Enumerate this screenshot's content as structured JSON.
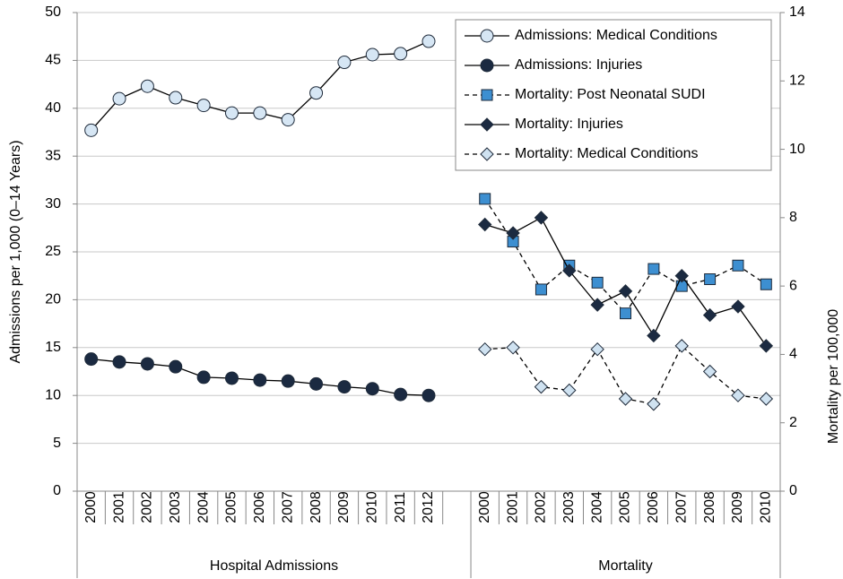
{
  "chart_data": {
    "type": "line",
    "y_label": "Admissions per 1,000 (0–14 Years)",
    "y2_label": "Mortality per 100,000",
    "categories": [
      "2000",
      "2001",
      "2002",
      "2003",
      "2004",
      "2005",
      "2006",
      "2007",
      "2008",
      "2009",
      "2010",
      "2011",
      "2012",
      null,
      "2000",
      "2001",
      "2002",
      "2003",
      "2004",
      "2005",
      "2006",
      "2007",
      "2008",
      "2009",
      "2010"
    ],
    "groups": [
      "Hospital Admissions",
      "Mortality"
    ],
    "ylim": [
      0,
      50
    ],
    "yticks": [
      0,
      5,
      10,
      15,
      20,
      25,
      30,
      35,
      40,
      45,
      50
    ],
    "y2lim": [
      0,
      14
    ],
    "y2ticks": [
      0,
      2,
      4,
      6,
      8,
      10,
      12,
      14
    ],
    "grid": true,
    "legend": "top-right",
    "series": [
      {
        "name": "Admissions: Medical Conditions",
        "color": "#d6e6f4",
        "marker": "circle",
        "dashed": false,
        "values": [
          37.7,
          41,
          42.3,
          41.1,
          40.3,
          39.5,
          39.5,
          38.8,
          41.6,
          44.8,
          45.6,
          45.7,
          47,
          null,
          null,
          null,
          null,
          null,
          null,
          null,
          null,
          null,
          null,
          null,
          null
        ]
      },
      {
        "name": "Admissions: Injuries",
        "color": "#1b2a41",
        "marker": "circle",
        "dashed": false,
        "values": [
          13.8,
          13.5,
          13.3,
          13.0,
          11.9,
          11.8,
          11.6,
          11.5,
          11.2,
          10.9,
          10.7,
          10.1,
          10.0,
          null,
          null,
          null,
          null,
          null,
          null,
          null,
          null,
          null,
          null,
          null,
          null
        ]
      },
      {
        "name": "Mortality: Post Neonatal SUDI",
        "color": "#3d8fd1",
        "marker": "square",
        "dashed": true,
        "axis": "y2",
        "values": [
          null,
          null,
          null,
          null,
          null,
          null,
          null,
          null,
          null,
          null,
          null,
          null,
          null,
          null,
          8.55,
          7.3,
          5.9,
          6.6,
          6.1,
          5.2,
          6.5,
          6.0,
          6.2,
          6.6,
          6.05
        ]
      },
      {
        "name": "Mortality: Injuries",
        "color": "#1b2a41",
        "marker": "diamond",
        "dashed": false,
        "axis": "y2",
        "values": [
          null,
          null,
          null,
          null,
          null,
          null,
          null,
          null,
          null,
          null,
          null,
          null,
          null,
          null,
          7.8,
          7.55,
          8.0,
          6.45,
          5.45,
          5.85,
          4.55,
          6.3,
          5.15,
          5.4,
          4.25
        ]
      },
      {
        "name": "Mortality: Medical Conditions",
        "color": "#cfe2f1",
        "marker": "diamond",
        "dashed": true,
        "axis": "y2",
        "values": [
          null,
          null,
          null,
          null,
          null,
          null,
          null,
          null,
          null,
          null,
          null,
          null,
          null,
          null,
          4.15,
          4.2,
          3.05,
          2.95,
          4.15,
          2.7,
          2.55,
          4.25,
          3.5,
          2.8,
          2.7
        ]
      }
    ]
  }
}
